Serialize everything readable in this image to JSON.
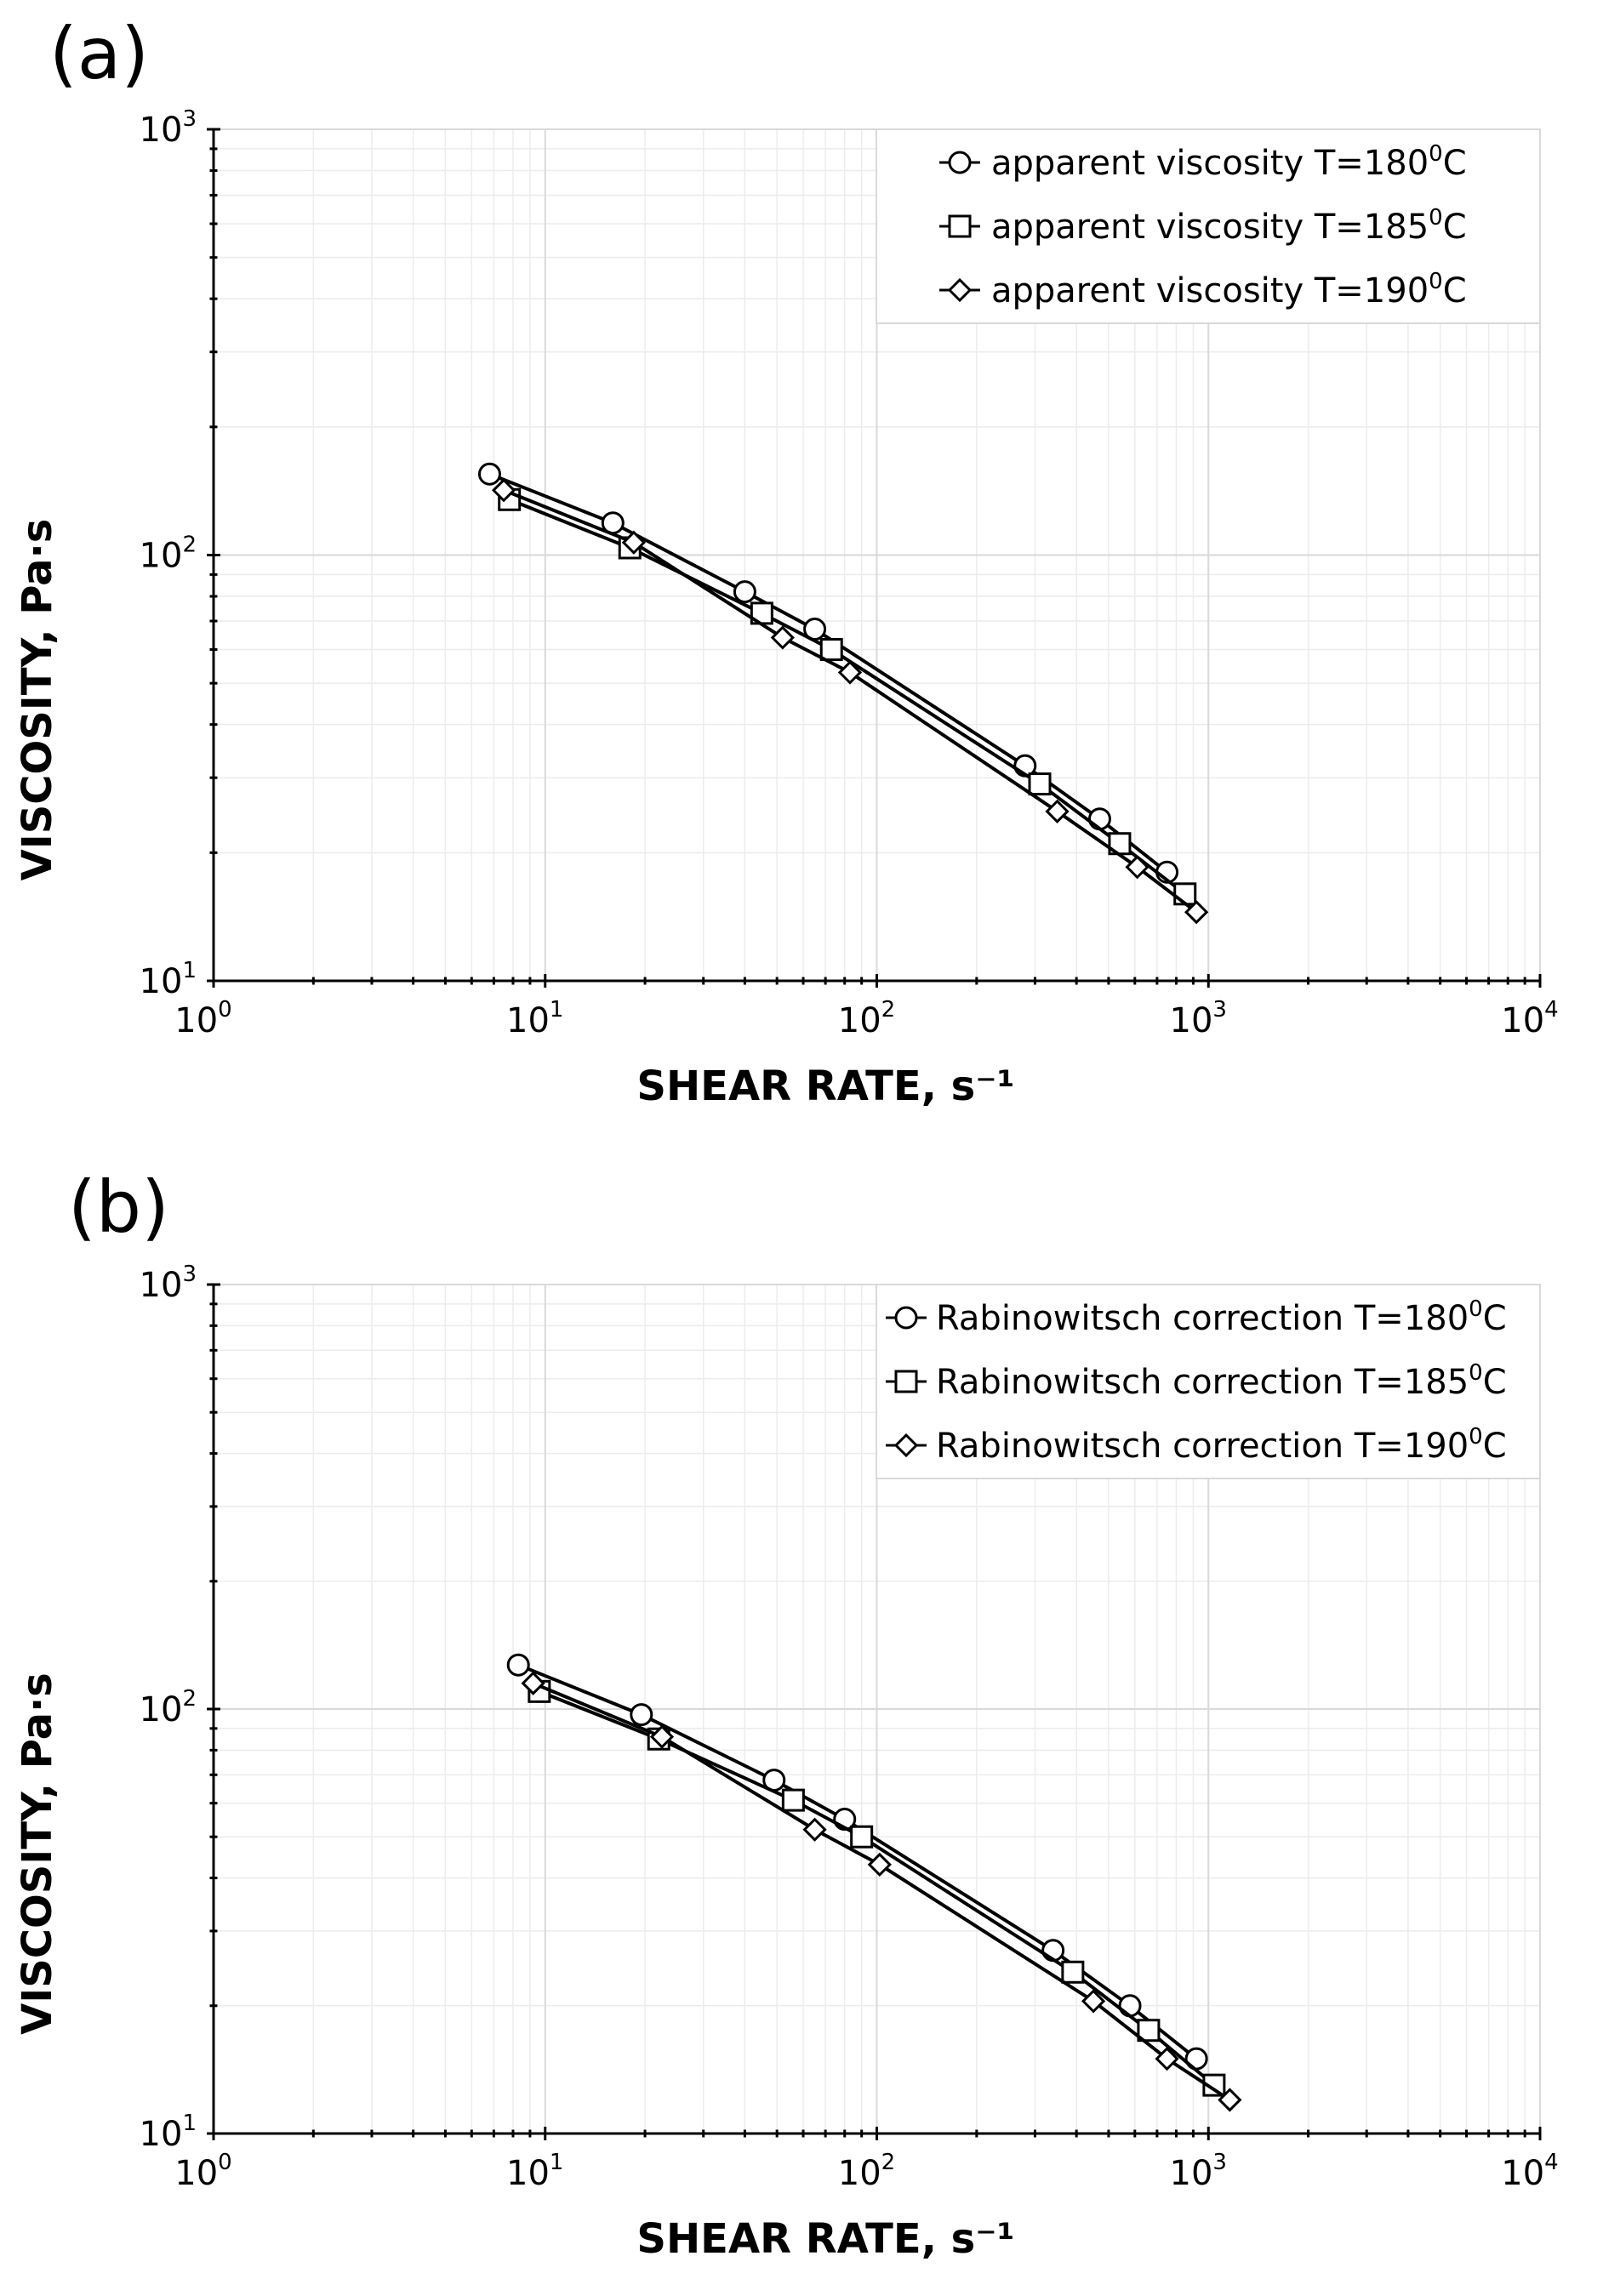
{
  "chart_data": [
    {
      "type": "line",
      "panel_label": "(a)",
      "xscale": "log",
      "yscale": "log",
      "xlim": [
        1,
        10000
      ],
      "ylim": [
        10,
        1000
      ],
      "xlabel": "SHEAR RATE, s⁻¹",
      "ylabel": "VISCOSITY, Pa·s",
      "x_ticks": [
        {
          "base": "10",
          "exp": "0"
        },
        {
          "base": "10",
          "exp": "1"
        },
        {
          "base": "10",
          "exp": "2"
        },
        {
          "base": "10",
          "exp": "3"
        },
        {
          "base": "10",
          "exp": "4"
        }
      ],
      "y_ticks": [
        {
          "base": "10",
          "exp": "1"
        },
        {
          "base": "10",
          "exp": "2"
        },
        {
          "base": "10",
          "exp": "3"
        }
      ],
      "grid": true,
      "legend_position": "top-right",
      "series": [
        {
          "name": "apparent viscosity T=180",
          "name_sup": "0",
          "name_suffix": "C",
          "marker": "circle",
          "x": [
            6.8,
            16,
            40,
            65,
            280,
            470,
            750
          ],
          "y": [
            155,
            119,
            82,
            67,
            32,
            24,
            18
          ]
        },
        {
          "name": "apparent viscosity T=185",
          "name_sup": "0",
          "name_suffix": "C",
          "marker": "square",
          "x": [
            7.8,
            18,
            45,
            73,
            310,
            540,
            850
          ],
          "y": [
            135,
            104,
            73,
            60,
            29,
            21,
            16
          ]
        },
        {
          "name": "apparent viscosity T=190",
          "name_sup": "0",
          "name_suffix": "C",
          "marker": "diamond",
          "x": [
            7.5,
            18.5,
            52,
            83,
            350,
            610,
            920
          ],
          "y": [
            142,
            107,
            64,
            53,
            25,
            18.5,
            14.5
          ]
        }
      ]
    },
    {
      "type": "line",
      "panel_label": "(b)",
      "xscale": "log",
      "yscale": "log",
      "xlim": [
        1,
        10000
      ],
      "ylim": [
        10,
        1000
      ],
      "xlabel": "SHEAR RATE, s⁻¹",
      "ylabel": "VISCOSITY, Pa·s",
      "x_ticks": [
        {
          "base": "10",
          "exp": "0"
        },
        {
          "base": "10",
          "exp": "1"
        },
        {
          "base": "10",
          "exp": "2"
        },
        {
          "base": "10",
          "exp": "3"
        },
        {
          "base": "10",
          "exp": "4"
        }
      ],
      "y_ticks": [
        {
          "base": "10",
          "exp": "1"
        },
        {
          "base": "10",
          "exp": "2"
        },
        {
          "base": "10",
          "exp": "3"
        }
      ],
      "grid": true,
      "legend_position": "top-right",
      "series": [
        {
          "name": "Rabinowitsch correction T=180",
          "name_sup": "0",
          "name_suffix": "C",
          "marker": "circle",
          "x": [
            8.3,
            19.5,
            49,
            80,
            340,
            580,
            920
          ],
          "y": [
            127,
            97,
            68,
            55,
            27,
            20,
            15
          ]
        },
        {
          "name": "Rabinowitsch correction T=185",
          "name_sup": "0",
          "name_suffix": "C",
          "marker": "square",
          "x": [
            9.6,
            22,
            56,
            90,
            390,
            660,
            1040
          ],
          "y": [
            110,
            85,
            61,
            50,
            24,
            17.5,
            13
          ]
        },
        {
          "name": "Rabinowitsch correction T=190",
          "name_sup": "0",
          "name_suffix": "C",
          "marker": "diamond",
          "x": [
            9.2,
            22.5,
            65,
            102,
            450,
            750,
            1160
          ],
          "y": [
            115,
            86,
            52,
            43,
            20.5,
            15,
            12
          ]
        }
      ]
    }
  ]
}
